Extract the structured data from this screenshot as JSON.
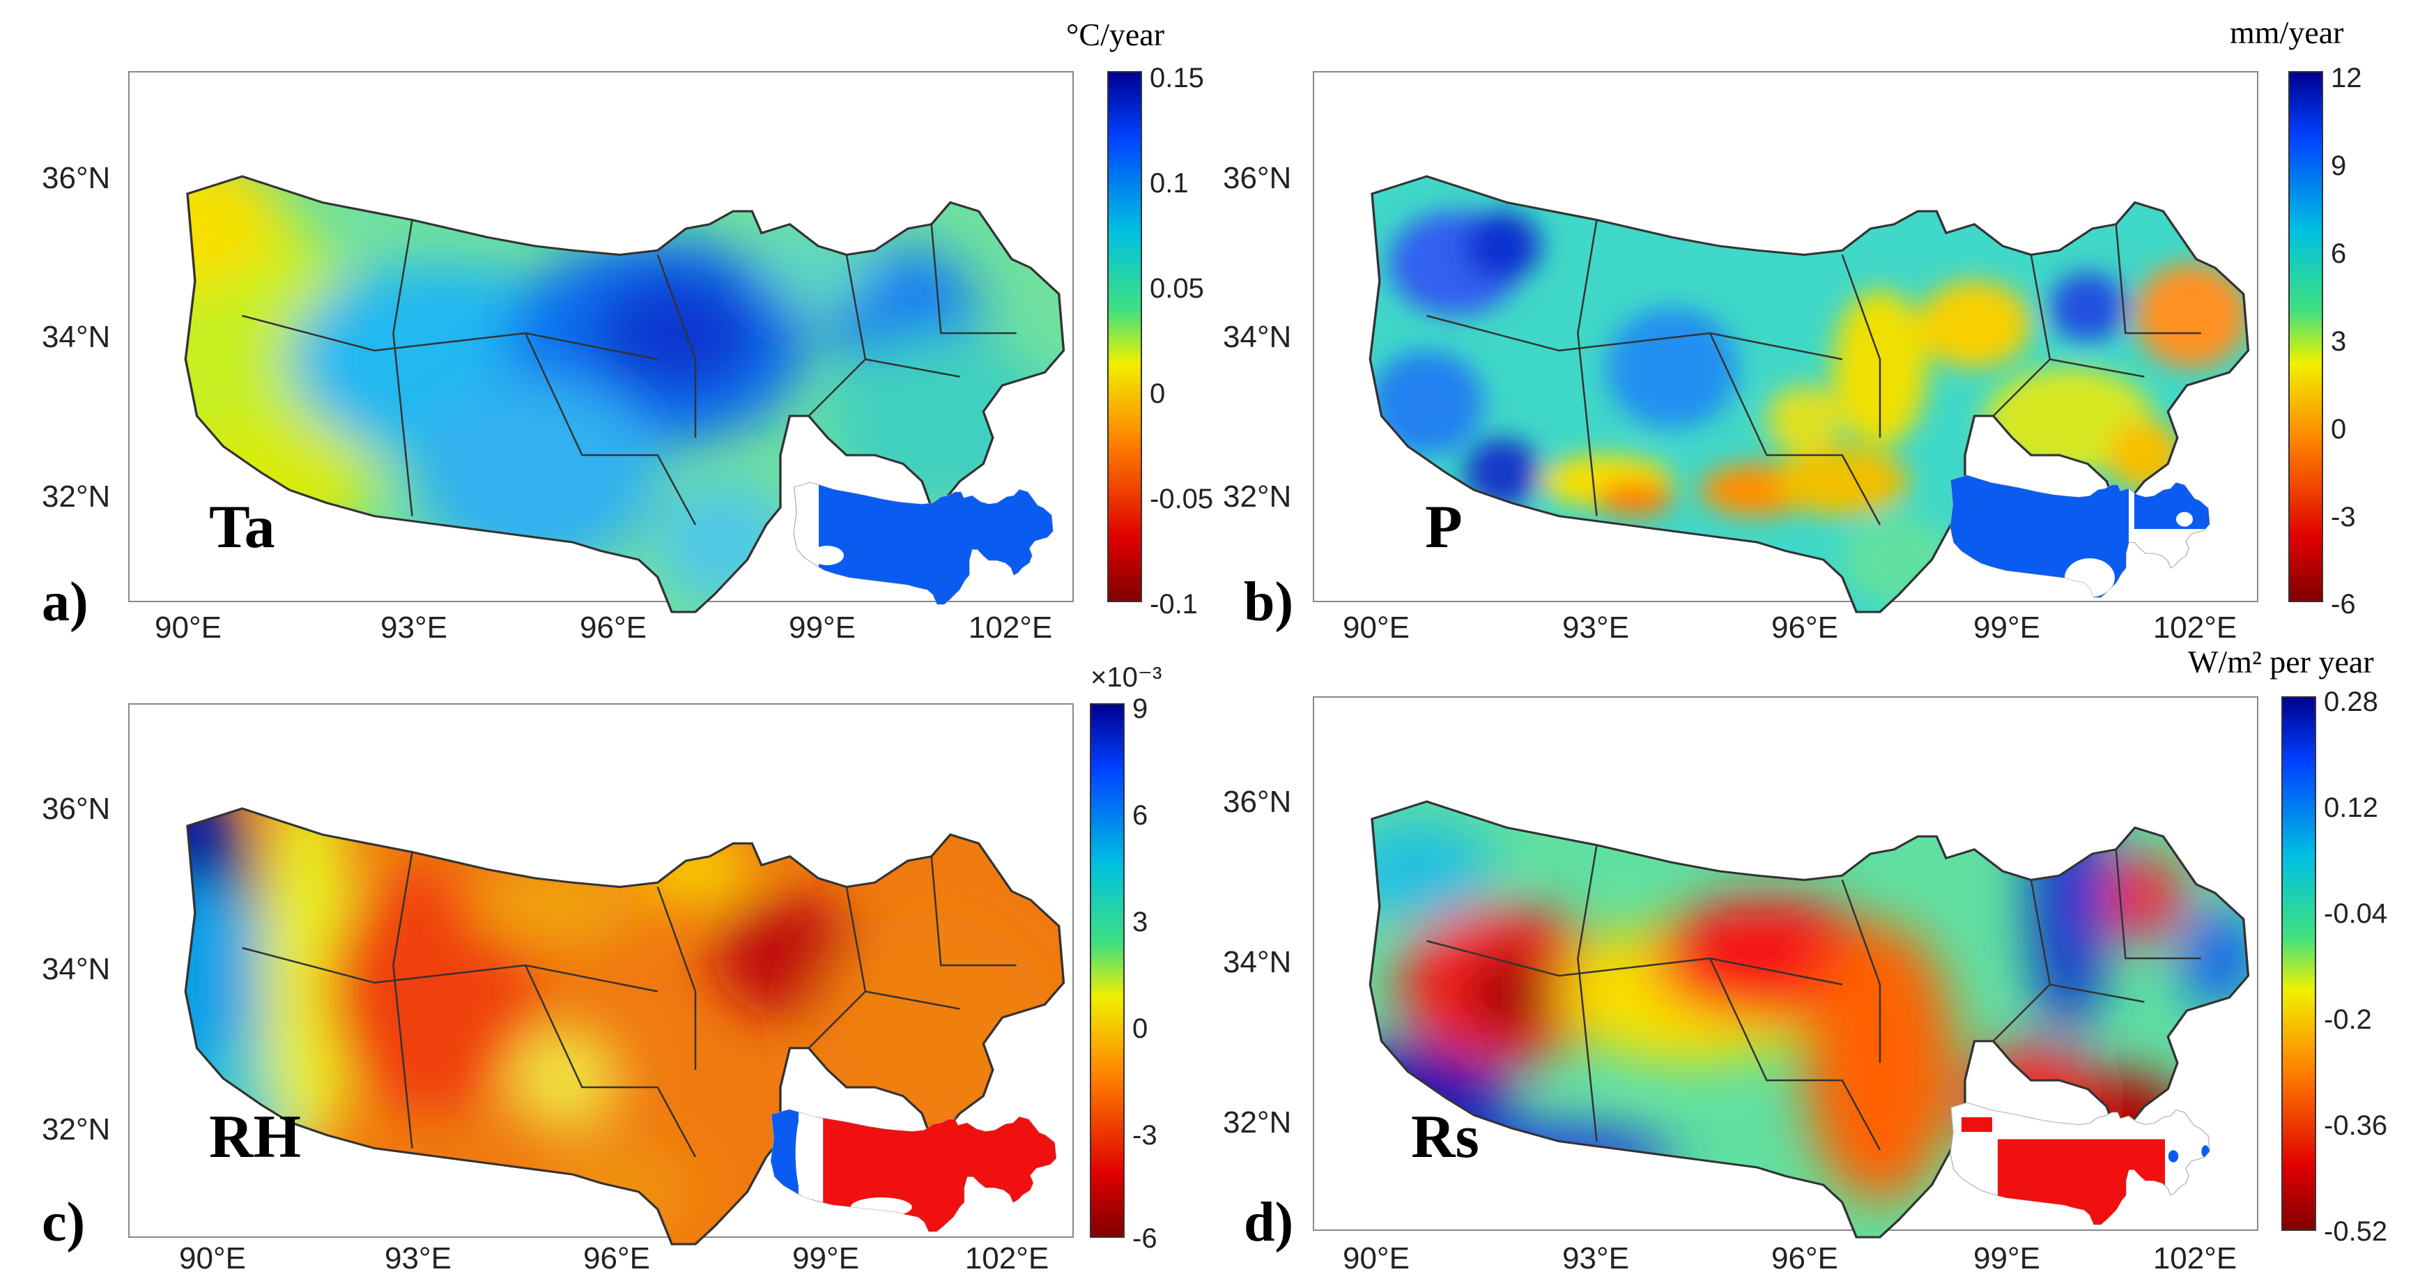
{
  "chart_data": [
    {
      "type": "heatmap",
      "panel_label": "a)",
      "variable": "Ta",
      "unit": "°C/year",
      "colorbar": {
        "ticks": [
          "0.15",
          "0.1",
          "0.05",
          "0",
          "-0.05",
          "-0.1"
        ],
        "range": [
          -0.1,
          0.15
        ],
        "multiplier": ""
      },
      "x_ticks": [
        "90°E",
        "93°E",
        "96°E",
        "99°E",
        "102°E"
      ],
      "y_ticks": [
        "36°N",
        "34°N",
        "32°N"
      ],
      "dominant_trend": "increasing",
      "significance_inset": "blue"
    },
    {
      "type": "heatmap",
      "panel_label": "b)",
      "variable": "P",
      "unit": "mm/year",
      "colorbar": {
        "ticks": [
          "12",
          "9",
          "6",
          "3",
          "0",
          "-3",
          "-6"
        ],
        "range": [
          -6,
          12
        ],
        "multiplier": ""
      },
      "x_ticks": [
        "90°E",
        "93°E",
        "96°E",
        "99°E",
        "102°E"
      ],
      "y_ticks": [
        "36°N",
        "34°N",
        "32°N"
      ],
      "dominant_trend": "increasing",
      "significance_inset": "blue"
    },
    {
      "type": "heatmap",
      "panel_label": "c)",
      "variable": "RH",
      "unit": "",
      "colorbar": {
        "ticks": [
          "9",
          "6",
          "3",
          "0",
          "-3",
          "-6"
        ],
        "range": [
          -6,
          9
        ],
        "multiplier": "×10⁻³"
      },
      "x_ticks": [
        "90°E",
        "93°E",
        "96°E",
        "99°E",
        "102°E"
      ],
      "y_ticks": [
        "36°N",
        "34°N",
        "32°N"
      ],
      "dominant_trend": "decreasing",
      "significance_inset": "mixed"
    },
    {
      "type": "heatmap",
      "panel_label": "d)",
      "variable": "Rs",
      "unit": "W/m² per year",
      "colorbar": {
        "ticks": [
          "0.28",
          "0.12",
          "-0.04",
          "-0.2",
          "-0.36",
          "-0.52"
        ],
        "range": [
          -0.52,
          0.28
        ],
        "multiplier": ""
      },
      "x_ticks": [
        "90°E",
        "93°E",
        "96°E",
        "99°E",
        "102°E"
      ],
      "y_ticks": [
        "36°N",
        "34°N",
        "32°N"
      ],
      "dominant_trend": "decreasing",
      "significance_inset": "red"
    }
  ]
}
